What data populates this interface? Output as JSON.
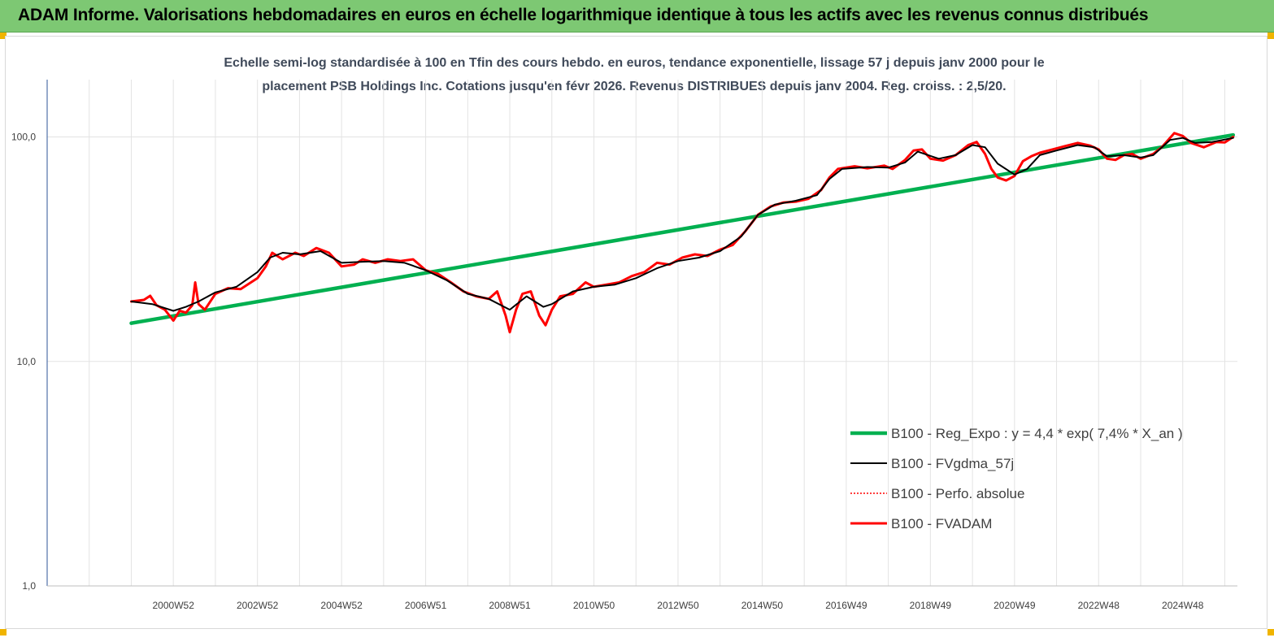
{
  "header": {
    "title": "ADAM Informe. Valorisations hebdomadaires en euros en échelle logarithmique identique à tous les actifs avec les revenus connus distribués"
  },
  "colors": {
    "header_bg": "#7dc873",
    "regression": "#00b050",
    "smoothed": "#000000",
    "absolute": "#ff0000",
    "fvadam": "#ff0000",
    "corner": "#f0b400"
  },
  "chart_data": {
    "type": "line",
    "title_line1": "Echelle semi-log standardisée à 100 en Tfin des cours hebdo. en euros, tendance exponentielle, lissage 57 j depuis janv 2000 pour le",
    "title_line2": "placement PSB Holdings Inc. Cotations jusqu'en févr 2026. Revenus DISTRIBUES depuis janv 2004. Reg. croiss. : 2,5/20.",
    "y_scale": "log",
    "ylim": [
      1,
      180
    ],
    "y_ticks": [
      {
        "value": 1,
        "label": "1,0"
      },
      {
        "value": 10,
        "label": "10,0"
      },
      {
        "value": 100,
        "label": "100,0"
      }
    ],
    "xlim": [
      1998.0,
      2026.3
    ],
    "x_ticks": [
      {
        "value": 2001.0,
        "label": "2000W52"
      },
      {
        "value": 2003.0,
        "label": "2002W52"
      },
      {
        "value": 2005.0,
        "label": "2004W52"
      },
      {
        "value": 2007.0,
        "label": "2006W51"
      },
      {
        "value": 2009.0,
        "label": "2008W51"
      },
      {
        "value": 2011.0,
        "label": "2010W50"
      },
      {
        "value": 2013.0,
        "label": "2012W50"
      },
      {
        "value": 2015.0,
        "label": "2014W50"
      },
      {
        "value": 2017.0,
        "label": "2016W49"
      },
      {
        "value": 2019.0,
        "label": "2018W49"
      },
      {
        "value": 2021.0,
        "label": "2020W49"
      },
      {
        "value": 2023.0,
        "label": "2022W48"
      },
      {
        "value": 2025.0,
        "label": "2024W48"
      }
    ],
    "grid": true,
    "legend_position": "right",
    "series": [
      {
        "name": "B100 - Reg_Expo : y = 4,4 * exp( 7,4% *  X_an )",
        "color": "#00b050",
        "width": 4.5,
        "points": [
          [
            2000.0,
            14.8
          ],
          [
            2026.2,
            102.0
          ]
        ]
      },
      {
        "name": "B100 - FVgdma_57j",
        "color": "#000000",
        "width": 2,
        "points": [
          [
            2000.0,
            18.5
          ],
          [
            2000.5,
            18.0
          ],
          [
            2001.0,
            16.8
          ],
          [
            2001.3,
            17.5
          ],
          [
            2001.6,
            18.5
          ],
          [
            2002.0,
            20.3
          ],
          [
            2002.5,
            21.5
          ],
          [
            2003.0,
            25.0
          ],
          [
            2003.3,
            29.0
          ],
          [
            2003.6,
            30.5
          ],
          [
            2004.0,
            30.0
          ],
          [
            2004.5,
            31.0
          ],
          [
            2005.0,
            27.5
          ],
          [
            2005.5,
            27.8
          ],
          [
            2006.0,
            28.0
          ],
          [
            2006.5,
            27.5
          ],
          [
            2007.0,
            25.5
          ],
          [
            2007.5,
            23.0
          ],
          [
            2008.0,
            20.0
          ],
          [
            2008.5,
            19.0
          ],
          [
            2009.0,
            17.0
          ],
          [
            2009.4,
            19.5
          ],
          [
            2009.8,
            17.5
          ],
          [
            2010.0,
            18.0
          ],
          [
            2010.5,
            20.5
          ],
          [
            2011.0,
            21.5
          ],
          [
            2011.5,
            22.0
          ],
          [
            2012.0,
            23.5
          ],
          [
            2012.5,
            26.0
          ],
          [
            2013.0,
            28.0
          ],
          [
            2013.5,
            29.0
          ],
          [
            2014.0,
            31.0
          ],
          [
            2014.5,
            36.0
          ],
          [
            2014.9,
            45.0
          ],
          [
            2015.3,
            50.0
          ],
          [
            2015.8,
            52.0
          ],
          [
            2016.3,
            55.0
          ],
          [
            2016.6,
            65.0
          ],
          [
            2016.9,
            72.0
          ],
          [
            2017.5,
            73.5
          ],
          [
            2018.0,
            73.0
          ],
          [
            2018.4,
            77.0
          ],
          [
            2018.7,
            86.0
          ],
          [
            2019.2,
            80.0
          ],
          [
            2019.6,
            83.0
          ],
          [
            2020.0,
            92.0
          ],
          [
            2020.3,
            90.0
          ],
          [
            2020.6,
            76.0
          ],
          [
            2021.0,
            68.0
          ],
          [
            2021.3,
            72.0
          ],
          [
            2021.6,
            83.0
          ],
          [
            2022.0,
            87.0
          ],
          [
            2022.5,
            92.0
          ],
          [
            2022.9,
            90.0
          ],
          [
            2023.2,
            82.0
          ],
          [
            2023.6,
            83.0
          ],
          [
            2024.0,
            81.0
          ],
          [
            2024.3,
            83.0
          ],
          [
            2024.7,
            97.0
          ],
          [
            2025.0,
            99.0
          ],
          [
            2025.3,
            94.0
          ],
          [
            2025.7,
            95.0
          ],
          [
            2026.2,
            99.0
          ]
        ]
      },
      {
        "name": "B100 - Perfo. absolue",
        "color": "#ff0000",
        "width": 1.5,
        "dashed": true,
        "points": []
      },
      {
        "name": "B100 - FVADAM",
        "color": "#ff0000",
        "width": 3,
        "points": [
          [
            2000.0,
            18.5
          ],
          [
            2000.3,
            18.8
          ],
          [
            2000.45,
            19.6
          ],
          [
            2000.6,
            17.8
          ],
          [
            2000.8,
            17.0
          ],
          [
            2001.0,
            15.2
          ],
          [
            2001.15,
            16.8
          ],
          [
            2001.3,
            16.5
          ],
          [
            2001.45,
            17.8
          ],
          [
            2001.52,
            22.5
          ],
          [
            2001.6,
            18.0
          ],
          [
            2001.75,
            17.0
          ],
          [
            2002.0,
            20.0
          ],
          [
            2002.3,
            21.2
          ],
          [
            2002.6,
            21.0
          ],
          [
            2003.0,
            23.5
          ],
          [
            2003.2,
            26.5
          ],
          [
            2003.35,
            30.5
          ],
          [
            2003.6,
            28.5
          ],
          [
            2003.9,
            30.5
          ],
          [
            2004.1,
            29.5
          ],
          [
            2004.4,
            32.0
          ],
          [
            2004.7,
            30.5
          ],
          [
            2005.0,
            26.5
          ],
          [
            2005.3,
            27.0
          ],
          [
            2005.5,
            28.5
          ],
          [
            2005.8,
            27.5
          ],
          [
            2006.1,
            28.5
          ],
          [
            2006.4,
            28.0
          ],
          [
            2006.7,
            28.5
          ],
          [
            2007.0,
            25.5
          ],
          [
            2007.3,
            24.5
          ],
          [
            2007.6,
            22.5
          ],
          [
            2007.9,
            20.5
          ],
          [
            2008.2,
            19.5
          ],
          [
            2008.5,
            19.0
          ],
          [
            2008.7,
            20.5
          ],
          [
            2008.9,
            16.0
          ],
          [
            2009.0,
            13.5
          ],
          [
            2009.15,
            17.0
          ],
          [
            2009.3,
            20.0
          ],
          [
            2009.5,
            20.5
          ],
          [
            2009.7,
            16.0
          ],
          [
            2009.85,
            14.5
          ],
          [
            2010.0,
            17.0
          ],
          [
            2010.2,
            19.5
          ],
          [
            2010.5,
            20.0
          ],
          [
            2010.8,
            22.5
          ],
          [
            2011.0,
            21.5
          ],
          [
            2011.3,
            22.0
          ],
          [
            2011.6,
            22.5
          ],
          [
            2011.9,
            24.0
          ],
          [
            2012.2,
            25.0
          ],
          [
            2012.5,
            27.5
          ],
          [
            2012.8,
            27.0
          ],
          [
            2013.1,
            29.0
          ],
          [
            2013.4,
            30.0
          ],
          [
            2013.7,
            29.5
          ],
          [
            2014.0,
            31.5
          ],
          [
            2014.3,
            33.0
          ],
          [
            2014.6,
            38.0
          ],
          [
            2014.9,
            45.0
          ],
          [
            2015.2,
            49.0
          ],
          [
            2015.5,
            51.0
          ],
          [
            2015.8,
            51.5
          ],
          [
            2016.1,
            53.0
          ],
          [
            2016.4,
            58.0
          ],
          [
            2016.6,
            66.0
          ],
          [
            2016.8,
            72.0
          ],
          [
            2017.2,
            74.0
          ],
          [
            2017.5,
            72.5
          ],
          [
            2017.9,
            74.5
          ],
          [
            2018.1,
            72.0
          ],
          [
            2018.4,
            79.0
          ],
          [
            2018.6,
            87.0
          ],
          [
            2018.8,
            88.0
          ],
          [
            2019.0,
            80.0
          ],
          [
            2019.3,
            78.5
          ],
          [
            2019.6,
            83.0
          ],
          [
            2019.9,
            92.0
          ],
          [
            2020.1,
            95.0
          ],
          [
            2020.3,
            84.0
          ],
          [
            2020.45,
            72.0
          ],
          [
            2020.6,
            66.0
          ],
          [
            2020.8,
            64.0
          ],
          [
            2021.0,
            67.0
          ],
          [
            2021.2,
            78.0
          ],
          [
            2021.4,
            82.0
          ],
          [
            2021.6,
            85.0
          ],
          [
            2021.9,
            88.0
          ],
          [
            2022.2,
            91.0
          ],
          [
            2022.5,
            94.0
          ],
          [
            2022.8,
            91.5
          ],
          [
            2023.0,
            88.0
          ],
          [
            2023.2,
            80.0
          ],
          [
            2023.4,
            79.0
          ],
          [
            2023.6,
            83.0
          ],
          [
            2023.8,
            84.0
          ],
          [
            2024.0,
            80.0
          ],
          [
            2024.3,
            84.0
          ],
          [
            2024.5,
            90.0
          ],
          [
            2024.8,
            104.0
          ],
          [
            2025.0,
            101.0
          ],
          [
            2025.2,
            94.0
          ],
          [
            2025.5,
            90.0
          ],
          [
            2025.8,
            95.0
          ],
          [
            2026.0,
            94.5
          ],
          [
            2026.2,
            100.0
          ]
        ]
      }
    ]
  }
}
